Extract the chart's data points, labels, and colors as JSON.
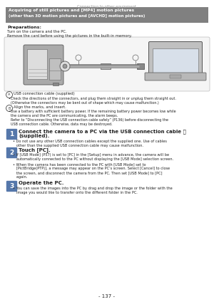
{
  "background_color": "#ffffff",
  "header_text": "Connecting to other equipment",
  "header_color": "#999999",
  "title_box_bg": "#808080",
  "title_box_text_color": "#ffffff",
  "title_line1": "Acquiring of still pictures and [MP4] motion pictures",
  "title_line2": "(other than 3D motion pictures and [AVCHD] motion pictures)",
  "prep_label": "Preparations:",
  "prep_line1": "Turn on the camera and the PC.",
  "prep_line2": "Remove the card before using the pictures in the built-in memory.",
  "caption_a": "USB connection cable (supplied)",
  "bullet1a": "•Check the directions of the connectors, and plug them straight in or unplug them straight out.",
  "bullet1b": "  (Otherwise the connectors may be bent out of shape which may cause malfunction.)",
  "caption_b": "Align the marks, and insert.",
  "bullet2a": "•Use a battery with sufficient battery power. If the remaining battery power becomes low while",
  "bullet2b": "  the camera and the PC are communicating, the alarm beeps.",
  "bullet2c": "  Refer to “Disconnecting the USB connection cable safely” (P136) before disconnecting the",
  "bullet2d": "  USB connection cable. Otherwise, data may be destroyed.",
  "step1_title": "Connect the camera to a PC via the USB connection cable Ⓐ",
  "step1_title2": "(supplied).",
  "step1_bullet1": "• Do not use any other USB connection cables except the supplied one. Use of cables",
  "step1_bullet2": "   other than the supplied USB connection cable may cause malfunction.",
  "step2_title": "Touch [PC].",
  "step2_bullet1a": "• If [USB Mode] (P57) is set to [PC] in the [Setup] menu in advance, the camera will be",
  "step2_bullet1b": "   automatically connected to the PC without displaying the [USB Mode] selection screen.",
  "step2_bullet2a": "• When the camera has been connected to the PC with [USB Mode] set to",
  "step2_bullet2b": "   [PictBridge(PTP)], a message may appear on the PC’s screen. Select [Cancel] to close",
  "step2_bullet2c": "   the screen, and disconnect the camera from the PC. Then set [USB Mode] to [PC]",
  "step2_bullet2d": "   again.",
  "step3_title": "Operate the PC.",
  "step3_bullet1": "• You can save the images into the PC by drag and drop the image or the folder with the",
  "step3_bullet2": "   image you would like to transfer onto the different folder in the PC.",
  "page_num": "- 137 -",
  "step_box_color": "#5577aa",
  "body_text_color": "#222222",
  "link_color": "#4472c4",
  "fs_tiny": 3.8,
  "fs_body": 4.2,
  "fs_step_title": 5.0,
  "fs_prep_bold": 4.5,
  "fs_header": 3.8,
  "fs_page": 5.0
}
